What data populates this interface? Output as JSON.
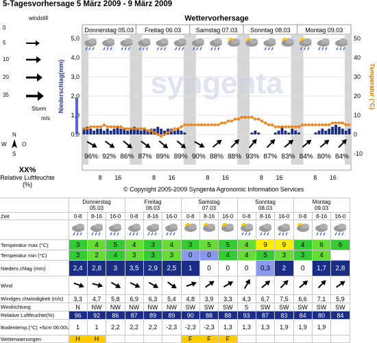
{
  "page": {
    "title": "5-Tagesvorhersage 5 März 2009 - 9 März 2009"
  },
  "wind_legend": {
    "windstill": "windstill",
    "values": [
      "0",
      "5",
      "10",
      "20",
      "35"
    ],
    "sturm": "Sturm",
    "unit": "m/s"
  },
  "compass": {
    "n": "N",
    "w": "W",
    "o": "O",
    "s": "S"
  },
  "humidity_legend": {
    "label": "XX%",
    "caption": "Relative Luftfeuchte (%)"
  },
  "chart_header": {
    "title": "Wettervorhersage"
  },
  "days": [
    {
      "name": "Donnerstag 05.03",
      "short": "Donnerstag",
      "date": "05.03"
    },
    {
      "name": "Freitag 06.03",
      "short": "Freitag",
      "date": "06.03"
    },
    {
      "name": "Samstag 07.03",
      "short": "Samstag",
      "date": "07.03"
    },
    {
      "name": "Sonntag 08.03",
      "short": "Sonntag",
      "date": "08.03"
    },
    {
      "name": "Montag 09.03",
      "short": "Montag",
      "date": "09.03"
    }
  ],
  "colors": {
    "precip": "#1a2d86",
    "temp": "#ee7700",
    "cloud": "#888888"
  },
  "chart_data": {
    "type": "bar",
    "ylabel": "Niederschlag(mm)",
    "y2label": "Temperatur (°C)",
    "ylim": [
      0,
      5
    ],
    "y2lim": [
      -10,
      50
    ],
    "yticks": [
      "5,0",
      "4,0",
      "3,0",
      "2,0",
      "1,0",
      "0,0"
    ],
    "y2ticks": [
      "50",
      "40",
      "30",
      "20",
      "10",
      "0",
      "-10"
    ],
    "x_ticks": [
      "8",
      "16",
      "8",
      "16",
      "8",
      "16",
      "8",
      "16",
      "8",
      "16"
    ],
    "humidity": [
      "96%",
      "92%",
      "86%",
      "87%",
      "89%",
      "89%",
      "90%",
      "88%",
      "88%",
      "93%",
      "87%",
      "83%",
      "84%",
      "80%",
      "84%"
    ],
    "precip_mm": [
      0.3,
      0.4,
      0.3,
      0.2,
      0.3,
      0.3,
      0.2,
      0.3,
      0.2,
      0.3,
      0.4,
      0.3,
      0.3,
      0.2,
      0.3,
      0.4,
      0.3,
      0.2,
      0.3,
      0.2,
      0.3,
      0.3,
      0.4,
      0.3,
      0.2,
      0.3,
      0.3,
      0.2,
      0.3,
      0.2,
      0.1,
      0,
      0,
      0,
      0,
      0,
      0,
      0,
      0,
      0,
      0,
      0,
      0,
      0,
      0,
      0,
      0,
      0,
      0,
      0,
      0.1,
      0.2,
      0.1,
      0,
      0,
      0,
      0,
      0.1,
      0.2,
      0.4,
      0.2,
      0.1,
      0.3,
      0.2,
      0.1,
      0,
      0,
      0,
      0,
      0.1,
      0.2,
      0.3,
      0.2,
      0.3,
      0.4,
      0.5,
      0.4,
      0.3,
      0.2,
      0.3
    ],
    "temp_c": [
      3,
      3,
      4,
      4,
      4,
      4,
      5,
      4,
      4,
      4,
      4,
      4,
      3,
      3,
      3,
      3,
      3,
      3,
      3,
      2,
      2,
      1,
      0,
      -1,
      0,
      1,
      2,
      3,
      3,
      4,
      5,
      5,
      5,
      5,
      5,
      5,
      5,
      5,
      5,
      5,
      5,
      6,
      6,
      7,
      7,
      8,
      8,
      9,
      9,
      9,
      9,
      8,
      8,
      7,
      6,
      5,
      5,
      4,
      4,
      4,
      4,
      4,
      4,
      4,
      4,
      5,
      5,
      5,
      5,
      5,
      5,
      5,
      5,
      5,
      6,
      6,
      6,
      6,
      5,
      5
    ],
    "extra_bars": {
      "index": 2,
      "value": 1.9
    }
  },
  "copyright": "© Copyright 2005-2009 Syngenta Agronomic Information Services",
  "table": {
    "zeit_label": "Zeit",
    "slots": [
      "0-8",
      "8-16",
      "16-0",
      "0-8",
      "8-16",
      "16-0",
      "0-8",
      "8-16",
      "16-0",
      "0-8",
      "8-16",
      "16-0",
      "0-8",
      "8-16",
      "16-0"
    ],
    "temp_max_label": "Temperatur max (°C)",
    "temp_max": [
      "3",
      "4",
      "5",
      "4",
      "3",
      "4",
      "3",
      "5",
      "5",
      "4",
      "9",
      "9",
      "4",
      "6",
      "6"
    ],
    "temp_min_label": "Temperatur min (°C)",
    "temp_min": [
      "3",
      "2",
      "4",
      "3",
      "3",
      "3",
      "0",
      "0",
      "4",
      "4",
      "5",
      "3",
      "3",
      "4",
      ""
    ],
    "precip_label": "Nieders chlag (mm)",
    "precip": [
      "2,4",
      "2,8",
      "3",
      "3,5",
      "2,9",
      "2,5",
      "1",
      "0",
      "0",
      "0",
      "0,3",
      "2",
      "0",
      "1,7",
      "2,8"
    ],
    "wind_label": "Wind",
    "wind_speed_label": "Windges chwindigkeit (m/s)",
    "wind_speed": [
      "3,3",
      "4,7",
      "5,8",
      "6,9",
      "6,3",
      "5,4",
      "4,8",
      "3,9",
      "3,3",
      "4,3",
      "6,7",
      "7,5",
      "6,6",
      "7,1",
      "5,9"
    ],
    "wind_dir_label": "Windrichtung",
    "wind_dir": [
      "N",
      "NW",
      "NW",
      "NW",
      "NW",
      "NW",
      "SW",
      "SW",
      "SW",
      "S",
      "SW",
      "SW",
      "SW",
      "SW",
      "SW"
    ],
    "rh_label": "Relative Luftfeuchte(%)",
    "rh": [
      "96",
      "92",
      "86",
      "87",
      "89",
      "89",
      "90",
      "88",
      "88",
      "93",
      "87",
      "83",
      "84",
      "80",
      "84"
    ],
    "soil_label": "Bodentemp.(°C) +5cm 06:00Uhr",
    "soil": [
      "1",
      "1",
      "2,2",
      "2,2",
      "2,2",
      "-2,3",
      "-2,3",
      "-2,3",
      "1,3",
      "1,3",
      "1,3",
      "1,9",
      "1,9",
      "1,9",
      ""
    ],
    "warn_label": "Wetterwarnungen",
    "warn": [
      "H",
      "H",
      "",
      "",
      "",
      "",
      "F",
      "F",
      "F",
      "",
      "",
      "",
      "",
      "",
      ""
    ]
  }
}
